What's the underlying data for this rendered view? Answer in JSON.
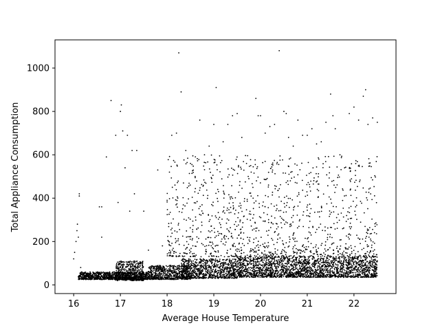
{
  "chart_data": {
    "type": "scatter",
    "title": "",
    "xlabel": "Average House Temperature",
    "ylabel": "Total Appliance Consumption",
    "xlim": [
      15.6,
      22.9
    ],
    "ylim": [
      -40,
      1130
    ],
    "xticks": [
      16,
      17,
      18,
      19,
      20,
      21,
      22
    ],
    "yticks": [
      0,
      200,
      400,
      600,
      800,
      1000
    ],
    "grid": false,
    "legend": "none",
    "marker_color": "#000000",
    "series": [
      {
        "points": [
          [
            16.0,
            120
          ],
          [
            16.02,
            150
          ],
          [
            16.05,
            200
          ],
          [
            16.07,
            250
          ],
          [
            16.08,
            280
          ],
          [
            16.1,
            220
          ],
          [
            16.12,
            410
          ],
          [
            16.12,
            420
          ],
          [
            16.15,
            80
          ],
          [
            16.2,
            45
          ],
          [
            16.3,
            40
          ],
          [
            16.4,
            35
          ],
          [
            16.5,
            30
          ],
          [
            16.55,
            360
          ],
          [
            16.6,
            360
          ],
          [
            16.6,
            220
          ],
          [
            16.7,
            590
          ],
          [
            16.8,
            850
          ],
          [
            16.9,
            690
          ],
          [
            16.95,
            380
          ],
          [
            17.0,
            800
          ],
          [
            17.02,
            830
          ],
          [
            17.05,
            710
          ],
          [
            17.1,
            540
          ],
          [
            17.15,
            690
          ],
          [
            17.2,
            340
          ],
          [
            17.25,
            620
          ],
          [
            17.3,
            420
          ],
          [
            17.35,
            620
          ],
          [
            17.5,
            340
          ],
          [
            17.6,
            160
          ],
          [
            17.8,
            530
          ],
          [
            17.9,
            180
          ],
          [
            18.0,
            390
          ],
          [
            18.05,
            520
          ],
          [
            18.1,
            690
          ],
          [
            18.2,
            700
          ],
          [
            18.25,
            1070
          ],
          [
            18.3,
            890
          ],
          [
            18.4,
            620
          ],
          [
            18.5,
            560
          ],
          [
            18.6,
            500
          ],
          [
            18.7,
            760
          ],
          [
            18.8,
            600
          ],
          [
            18.9,
            640
          ],
          [
            19.0,
            740
          ],
          [
            19.05,
            910
          ],
          [
            19.1,
            430
          ],
          [
            19.2,
            660
          ],
          [
            19.3,
            740
          ],
          [
            19.4,
            780
          ],
          [
            19.5,
            790
          ],
          [
            19.6,
            680
          ],
          [
            19.7,
            560
          ],
          [
            19.8,
            520
          ],
          [
            19.9,
            860
          ],
          [
            19.95,
            780
          ],
          [
            20.0,
            780
          ],
          [
            20.1,
            700
          ],
          [
            20.2,
            730
          ],
          [
            20.3,
            740
          ],
          [
            20.4,
            1080
          ],
          [
            20.5,
            800
          ],
          [
            20.55,
            790
          ],
          [
            20.6,
            680
          ],
          [
            20.7,
            640
          ],
          [
            20.8,
            760
          ],
          [
            20.9,
            690
          ],
          [
            21.0,
            690
          ],
          [
            21.1,
            720
          ],
          [
            21.2,
            650
          ],
          [
            21.3,
            660
          ],
          [
            21.4,
            750
          ],
          [
            21.5,
            880
          ],
          [
            21.55,
            780
          ],
          [
            21.6,
            720
          ],
          [
            21.7,
            600
          ],
          [
            21.8,
            540
          ],
          [
            21.9,
            790
          ],
          [
            22.0,
            820
          ],
          [
            22.1,
            760
          ],
          [
            22.2,
            870
          ],
          [
            22.25,
            900
          ],
          [
            22.3,
            740
          ],
          [
            22.4,
            770
          ],
          [
            22.5,
            750
          ]
        ]
      }
    ],
    "dense_band": [
      {
        "x_from": 16.1,
        "x_to": 17.6,
        "y_from": 25,
        "y_to": 60
      },
      {
        "x_from": 16.9,
        "x_to": 17.5,
        "y_from": 20,
        "y_to": 110
      },
      {
        "x_from": 17.6,
        "x_to": 18.5,
        "y_from": 25,
        "y_to": 90
      },
      {
        "x_from": 18.3,
        "x_to": 19.5,
        "y_from": 30,
        "y_to": 120
      },
      {
        "x_from": 19.5,
        "x_to": 22.5,
        "y_from": 35,
        "y_to": 130
      }
    ],
    "sparse_region": [
      {
        "x_from": 18.0,
        "x_to": 22.5,
        "y_from": 130,
        "y_to": 600
      }
    ]
  }
}
